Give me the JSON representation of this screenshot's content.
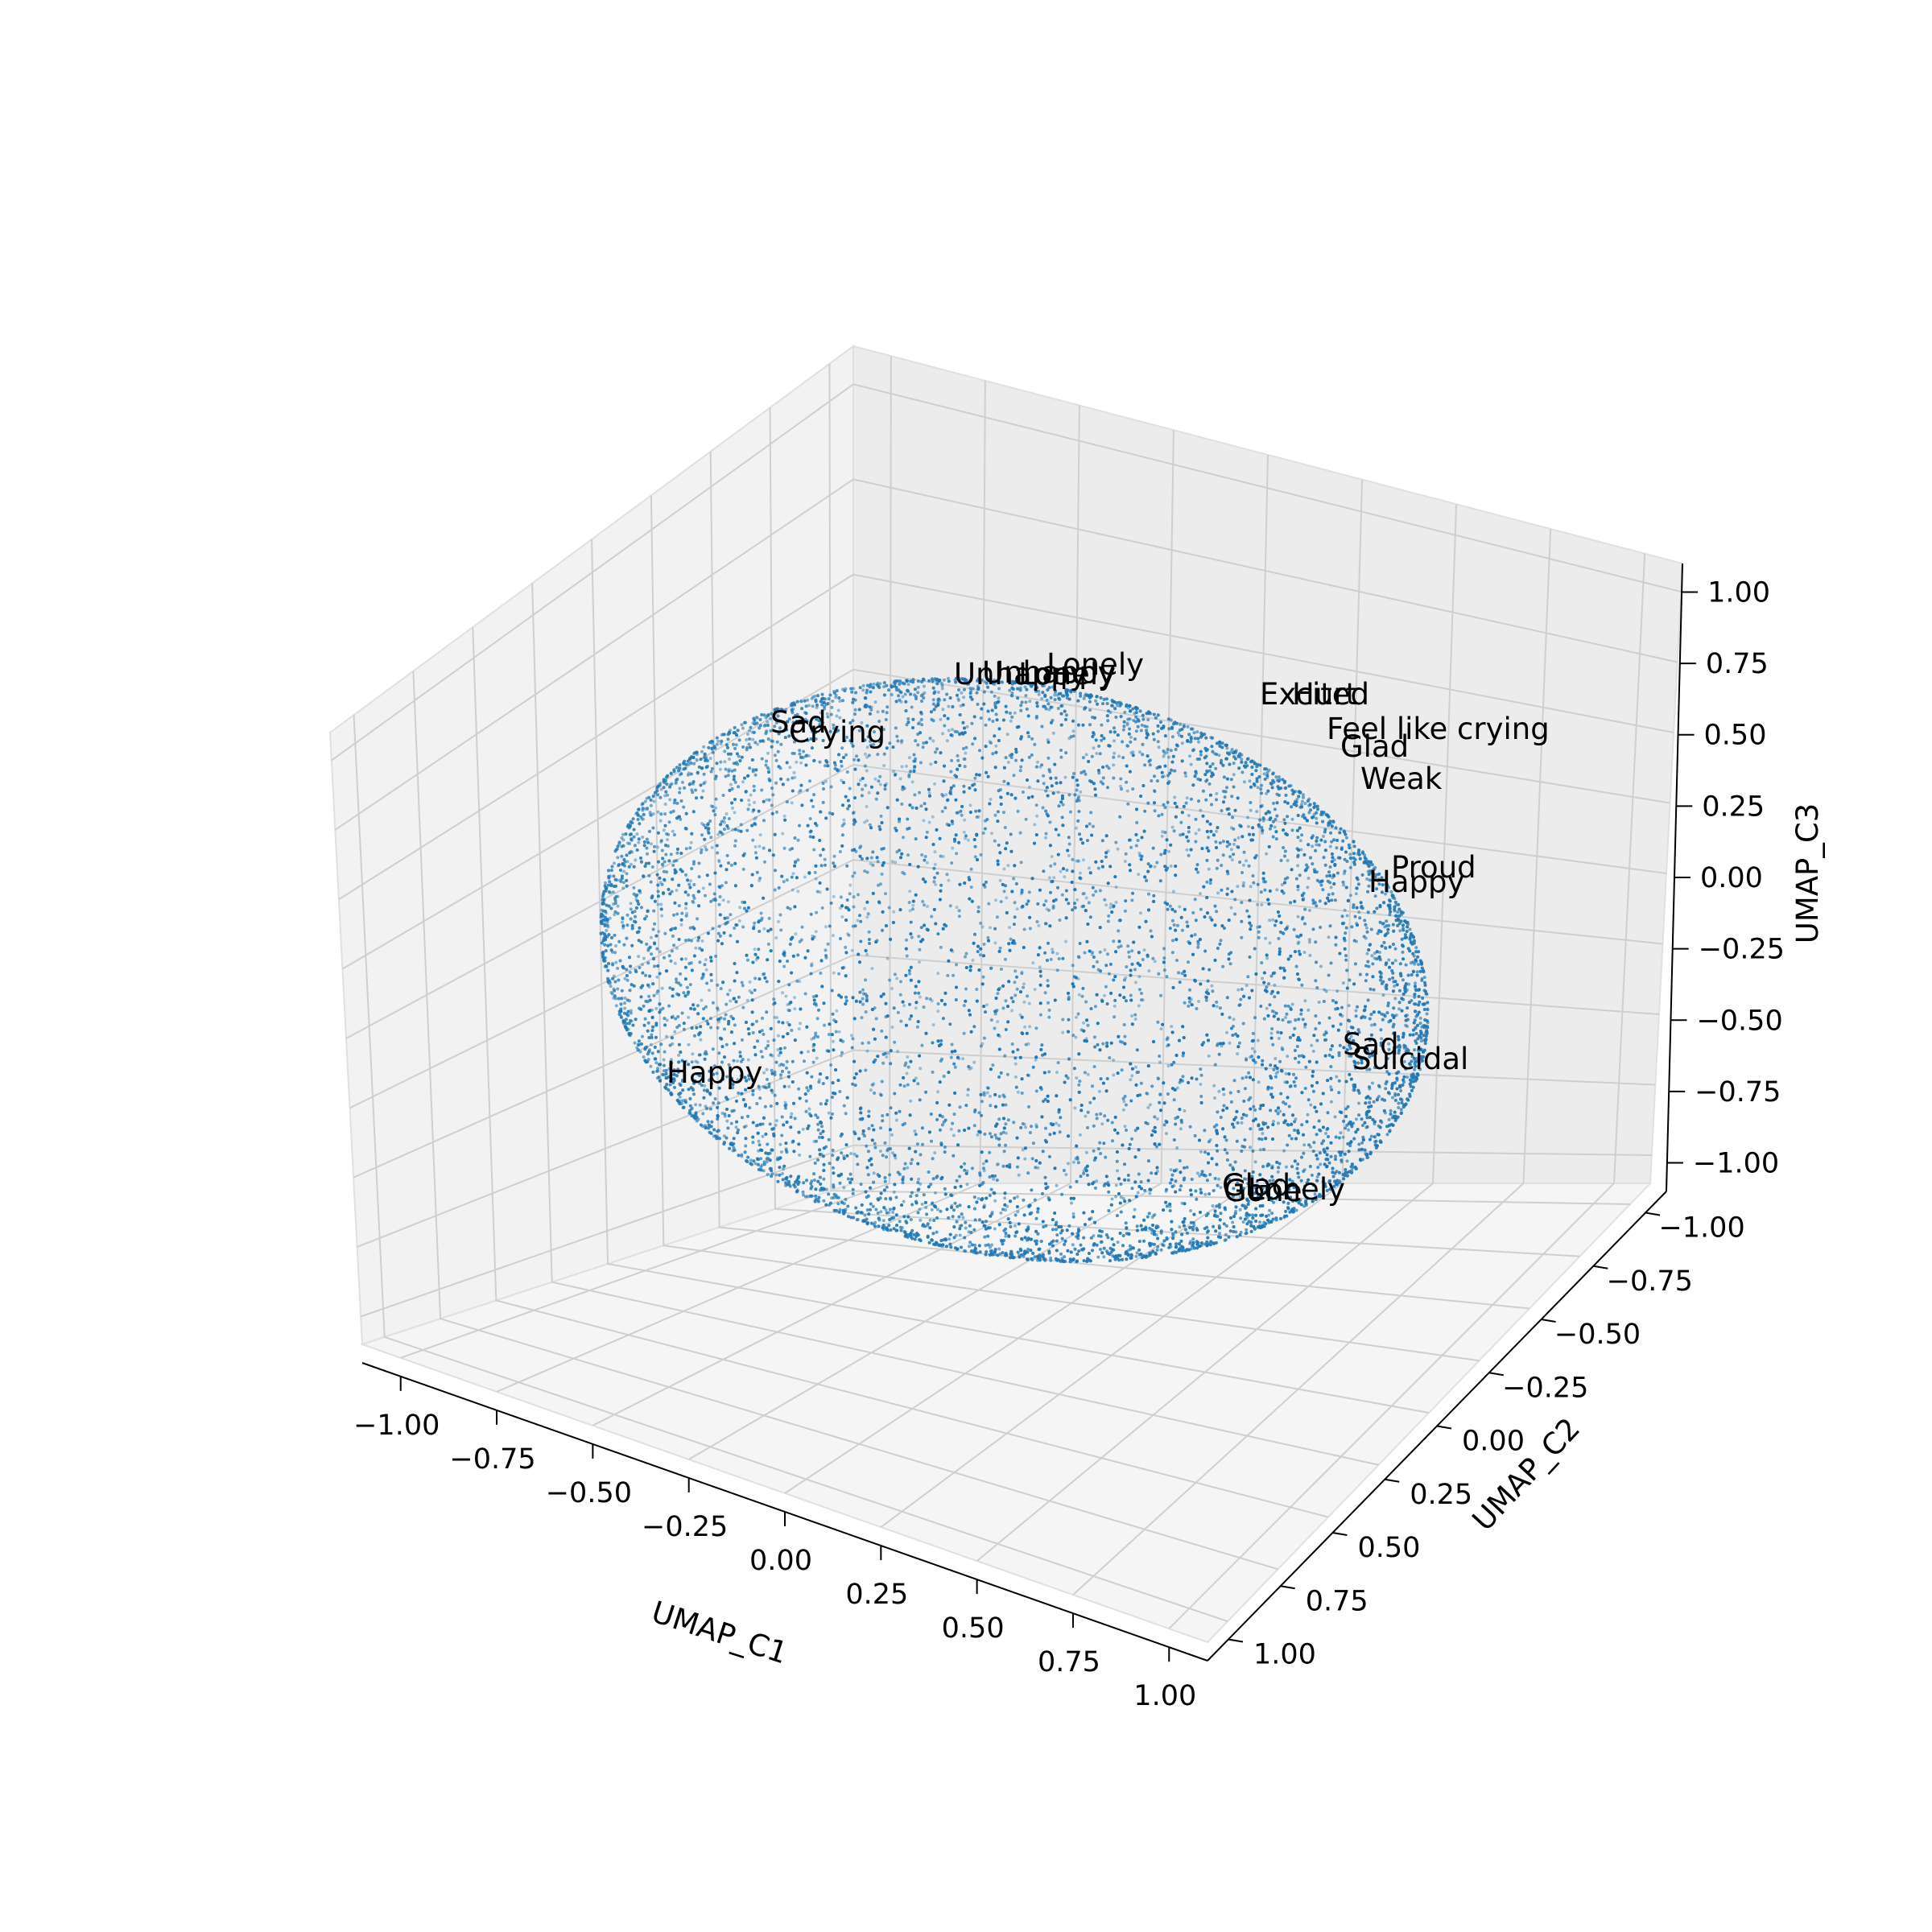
{
  "chart_data": {
    "type": "scatter",
    "projection": "3d",
    "shape": "points spread over the surface of a unit sphere, with denser clusters near the top and bottom",
    "point_count_estimate": 12000,
    "point_color": "#1f77b4",
    "grid": true,
    "pane_color": "#f2f2f2",
    "axes": {
      "x": {
        "label": "UMAP_C1",
        "lim": [
          -1.1,
          1.1
        ],
        "ticks": [
          "−1.00",
          "−0.75",
          "−0.50",
          "−0.25",
          "0.00",
          "0.25",
          "0.50",
          "0.75",
          "1.00"
        ]
      },
      "y": {
        "label": "UMAP_C2",
        "lim": [
          -1.1,
          1.1
        ],
        "ticks": [
          "−1.00",
          "−0.75",
          "−0.50",
          "−0.25",
          "0.00",
          "0.25",
          "0.50",
          "0.75",
          "1.00"
        ]
      },
      "z": {
        "label": "UMAP_C3",
        "lim": [
          -1.1,
          1.1
        ],
        "ticks": [
          "−1.00",
          "−0.75",
          "−0.50",
          "−0.25",
          "0.00",
          "0.25",
          "0.50",
          "0.75",
          "1.00"
        ]
      }
    },
    "annotations": [
      {
        "text": "Unhappy"
      },
      {
        "text": "Unhappy"
      },
      {
        "text": "Lonely"
      },
      {
        "text": "Lonely"
      },
      {
        "text": "Excited"
      },
      {
        "text": "Hurt"
      },
      {
        "text": "Feel like crying"
      },
      {
        "text": "Glad"
      },
      {
        "text": "Weak"
      },
      {
        "text": "Sad"
      },
      {
        "text": "Crying"
      },
      {
        "text": "Proud"
      },
      {
        "text": "Happy"
      },
      {
        "text": "Sad"
      },
      {
        "text": "Suicidal"
      },
      {
        "text": "Happy"
      },
      {
        "text": "Glad"
      },
      {
        "text": "Lonely"
      },
      {
        "text": "Gone"
      }
    ]
  }
}
